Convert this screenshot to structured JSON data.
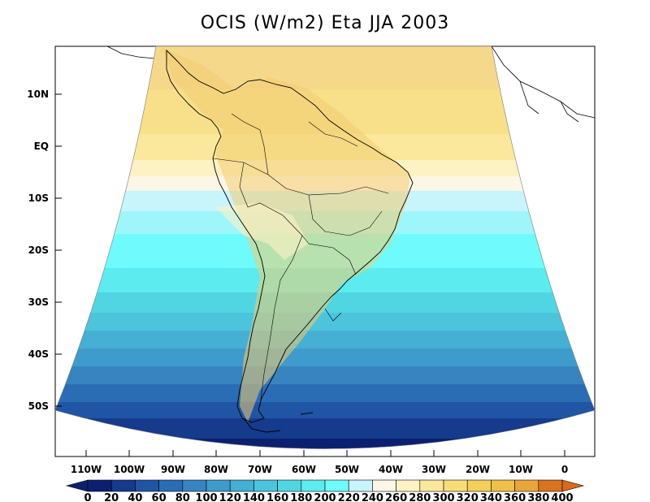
{
  "title": "OCIS (W/m2) Eta JJA 2003",
  "lat_labels": [
    "10N",
    "EQ",
    "10S",
    "20S",
    "30S",
    "40S",
    "50S"
  ],
  "lon_labels": [
    "110W",
    "100W",
    "90W",
    "80W",
    "70W",
    "60W",
    "50W",
    "40W",
    "30W",
    "20W",
    "10W",
    "0"
  ],
  "colorbar": {
    "labels": [
      "0",
      "20",
      "40",
      "60",
      "80",
      "100",
      "120",
      "140",
      "160",
      "180",
      "200",
      "220",
      "240",
      "260",
      "280",
      "300",
      "320",
      "340",
      "360",
      "380",
      "400"
    ],
    "colors": [
      "#0c2070",
      "#163a8c",
      "#1f55a4",
      "#2a6db4",
      "#3784c0",
      "#3f9bcb",
      "#45afd4",
      "#4cc4dc",
      "#50d6e3",
      "#5cecf0",
      "#6ffafb",
      "#c8f4fb",
      "#fdf6e6",
      "#fdf2c4",
      "#fbe89c",
      "#f8dc78",
      "#f4cf5c",
      "#efc04a",
      "#eaa53c",
      "#d97320"
    ]
  }
}
